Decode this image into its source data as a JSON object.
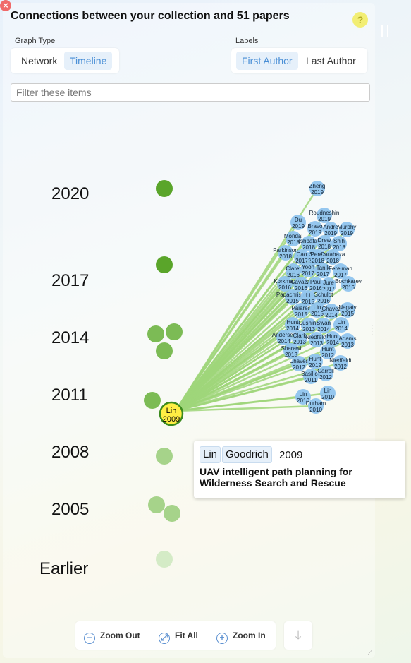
{
  "header": {
    "title": "Connections between your collection and 51 papers",
    "help_icon": "?",
    "close_icon": "×"
  },
  "graph_type": {
    "label": "Graph Type",
    "options": [
      "Network",
      "Timeline"
    ],
    "selected": "Timeline"
  },
  "labels": {
    "label": "Labels",
    "options": [
      "First Author",
      "Last Author"
    ],
    "selected": "First Author"
  },
  "filter": {
    "placeholder": "Filter these items",
    "value": ""
  },
  "timeline": {
    "years": [
      "2020",
      "2017",
      "2014",
      "2011",
      "2008",
      "2005",
      "Earlier"
    ],
    "focus_node": {
      "author": "Lin",
      "year": "2009"
    },
    "colors": {
      "recent": "#5aa52a",
      "mid": "#7cbb55",
      "old": "#a6d38a",
      "oldest": "#d4ebc6",
      "focus": "#ffee44",
      "paper": "#8fc4ee",
      "edge": "#9fd67a"
    },
    "papers": [
      {
        "a": "Zheng",
        "y": "2019"
      },
      {
        "a": "Roudneshin",
        "y": "2019"
      },
      {
        "a": "Du",
        "y": "2019"
      },
      {
        "a": "Bravo",
        "y": "2019"
      },
      {
        "a": "Andre",
        "y": "2019"
      },
      {
        "a": "Murphy",
        "y": "2019"
      },
      {
        "a": "Mondal",
        "y": "2018"
      },
      {
        "a": "Ishbatat",
        "y": "2018"
      },
      {
        "a": "Drew",
        "y": "2018"
      },
      {
        "a": "Shih",
        "y": "2018"
      },
      {
        "a": "Parkinson",
        "y": "2018"
      },
      {
        "a": "Cao",
        "y": "2017"
      },
      {
        "a": "Sun",
        "y": "2018"
      },
      {
        "a": "Perez",
        "y": "2018"
      },
      {
        "a": "Carabaza",
        "y": "2018"
      },
      {
        "a": "Claret",
        "y": "2016"
      },
      {
        "a": "Yoon",
        "y": "2017"
      },
      {
        "a": "Tanik",
        "y": "2017"
      },
      {
        "a": "Fereiman",
        "y": "2017"
      },
      {
        "a": "Korkmaz",
        "y": "2016"
      },
      {
        "a": "Cavazzi",
        "y": "2016"
      },
      {
        "a": "Paul",
        "y": "2016"
      },
      {
        "a": "Jure",
        "y": "2017"
      },
      {
        "a": "Bochkarev",
        "y": "2016"
      },
      {
        "a": "Papachristos",
        "y": "2015"
      },
      {
        "a": "Li",
        "y": "2015"
      },
      {
        "a": "Schulot",
        "y": "2016"
      },
      {
        "a": "Paiares",
        "y": "2015"
      },
      {
        "a": "Lin",
        "y": "2015"
      },
      {
        "a": "Chavez",
        "y": "2014"
      },
      {
        "a": "Nagaty",
        "y": "2015"
      },
      {
        "a": "Hunt",
        "y": "2014"
      },
      {
        "a": "Cushing",
        "y": "2013"
      },
      {
        "a": "Swan",
        "y": "2014"
      },
      {
        "a": "Lin",
        "y": "2014"
      },
      {
        "a": "Andersen",
        "y": "2014"
      },
      {
        "a": "Clark",
        "y": "2013"
      },
      {
        "a": "Niedfeldt",
        "y": "2013"
      },
      {
        "a": "Hunt",
        "y": "2014"
      },
      {
        "a": "Adams",
        "y": "2013"
      },
      {
        "a": "Sharawi",
        "y": "2013"
      },
      {
        "a": "Hunt",
        "y": "2012"
      },
      {
        "a": "Chaves",
        "y": "2012"
      },
      {
        "a": "Hunt",
        "y": "2012"
      },
      {
        "a": "Niedfeldt",
        "y": "2012"
      },
      {
        "a": "Basilico",
        "y": "2011"
      },
      {
        "a": "Carroll",
        "y": "2012"
      },
      {
        "a": "Lin",
        "y": "2010"
      },
      {
        "a": "Lin",
        "y": "2010"
      },
      {
        "a": "Durham",
        "y": "2010"
      }
    ]
  },
  "tooltip": {
    "first_author": "Lin",
    "last_author": "Goodrich",
    "year": "2009",
    "title": "UAV intelligent path planning for Wilderness Search and Rescue"
  },
  "toolbar": {
    "zoom_out": "Zoom Out",
    "fit_all": "Fit All",
    "zoom_in": "Zoom In"
  }
}
